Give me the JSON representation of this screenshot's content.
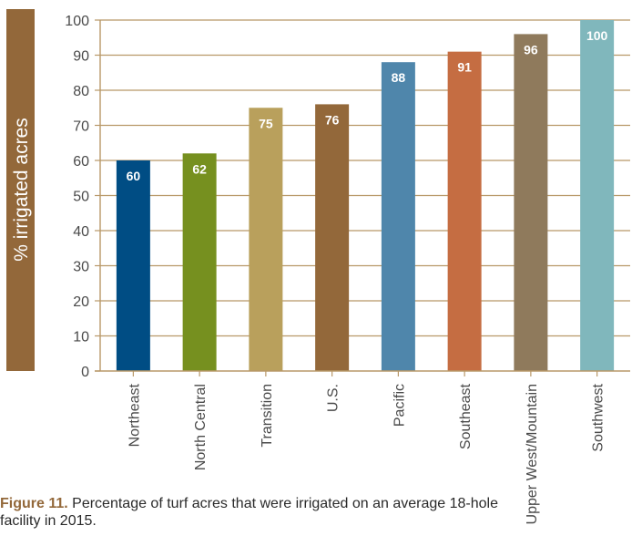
{
  "chart_data": {
    "type": "bar",
    "title": "",
    "xlabel": "",
    "ylabel": "% irrigated acres",
    "ylim": [
      0,
      100
    ],
    "yticks": [
      0,
      10,
      20,
      30,
      40,
      50,
      60,
      70,
      80,
      90,
      100
    ],
    "grid": true,
    "categories": [
      "Northeast",
      "North Central",
      "Transition",
      "U.S.",
      "Pacific",
      "Southeast",
      "Upper West/Mountain",
      "Southwest"
    ],
    "values": [
      60,
      62,
      75,
      76,
      88,
      91,
      96,
      100
    ],
    "colors": [
      "#004d84",
      "#76901f",
      "#b9a05c",
      "#93683a",
      "#4f86ab",
      "#c56d42",
      "#8f7a5c",
      "#80b7bc"
    ],
    "grid_color": "#b89868",
    "label_box_color": "#93683a"
  },
  "caption": {
    "bold": "Figure 11.",
    "text": " Percentage of turf acres that were irrigated on an average 18-hole facility in 2015."
  }
}
